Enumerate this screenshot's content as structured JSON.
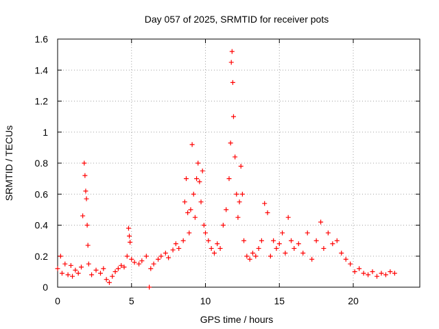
{
  "chart_data": {
    "type": "scatter",
    "title": "Day 057 of 2025, SRMTID for receiver pots",
    "xlabel": "GPS time / hours",
    "ylabel": "SRMTID / TECUs",
    "xlim": [
      0,
      24.5
    ],
    "ylim": [
      0,
      1.6
    ],
    "x_ticks": [
      0,
      5,
      10,
      15,
      20
    ],
    "x_tick_labels": [
      "0",
      "5",
      "10",
      "15",
      "20"
    ],
    "y_ticks": [
      0,
      0.2,
      0.4,
      0.6,
      0.8,
      1.0,
      1.2,
      1.4,
      1.6
    ],
    "y_tick_labels": [
      "0",
      "0.2",
      "0.4",
      "0.6",
      "0.8",
      "1",
      "1.2",
      "1.4",
      "1.6"
    ],
    "grid": true,
    "marker": "+",
    "marker_color": "#ff0000",
    "series": [
      {
        "name": "SRMTID",
        "points": [
          [
            0.0,
            0.12
          ],
          [
            0.2,
            0.2
          ],
          [
            0.3,
            0.09
          ],
          [
            0.5,
            0.15
          ],
          [
            0.7,
            0.08
          ],
          [
            0.9,
            0.14
          ],
          [
            1.0,
            0.07
          ],
          [
            1.2,
            0.11
          ],
          [
            1.4,
            0.09
          ],
          [
            1.6,
            0.13
          ],
          [
            1.7,
            0.46
          ],
          [
            1.8,
            0.8
          ],
          [
            1.85,
            0.72
          ],
          [
            1.9,
            0.62
          ],
          [
            1.95,
            0.57
          ],
          [
            2.0,
            0.4
          ],
          [
            2.05,
            0.27
          ],
          [
            2.1,
            0.15
          ],
          [
            2.3,
            0.08
          ],
          [
            2.6,
            0.11
          ],
          [
            2.9,
            0.09
          ],
          [
            3.1,
            0.12
          ],
          [
            3.3,
            0.05
          ],
          [
            3.5,
            0.03
          ],
          [
            3.7,
            0.07
          ],
          [
            3.9,
            0.1
          ],
          [
            4.1,
            0.12
          ],
          [
            4.3,
            0.14
          ],
          [
            4.5,
            0.13
          ],
          [
            4.7,
            0.2
          ],
          [
            4.8,
            0.38
          ],
          [
            4.85,
            0.33
          ],
          [
            4.9,
            0.29
          ],
          [
            5.0,
            0.18
          ],
          [
            5.2,
            0.16
          ],
          [
            5.5,
            0.15
          ],
          [
            5.7,
            0.17
          ],
          [
            6.0,
            0.2
          ],
          [
            6.2,
            0.0
          ],
          [
            6.3,
            0.12
          ],
          [
            6.5,
            0.15
          ],
          [
            6.8,
            0.18
          ],
          [
            7.0,
            0.2
          ],
          [
            7.3,
            0.22
          ],
          [
            7.5,
            0.19
          ],
          [
            7.8,
            0.24
          ],
          [
            8.0,
            0.28
          ],
          [
            8.2,
            0.25
          ],
          [
            8.5,
            0.3
          ],
          [
            8.6,
            0.55
          ],
          [
            8.7,
            0.7
          ],
          [
            8.8,
            0.48
          ],
          [
            8.9,
            0.35
          ],
          [
            9.0,
            0.5
          ],
          [
            9.1,
            0.92
          ],
          [
            9.2,
            0.6
          ],
          [
            9.3,
            0.45
          ],
          [
            9.4,
            0.7
          ],
          [
            9.5,
            0.8
          ],
          [
            9.6,
            0.68
          ],
          [
            9.7,
            0.55
          ],
          [
            9.8,
            0.75
          ],
          [
            9.9,
            0.4
          ],
          [
            10.0,
            0.35
          ],
          [
            10.2,
            0.3
          ],
          [
            10.4,
            0.25
          ],
          [
            10.6,
            0.22
          ],
          [
            10.8,
            0.28
          ],
          [
            11.0,
            0.25
          ],
          [
            11.2,
            0.4
          ],
          [
            11.4,
            0.5
          ],
          [
            11.6,
            0.7
          ],
          [
            11.7,
            0.93
          ],
          [
            11.75,
            1.45
          ],
          [
            11.8,
            1.52
          ],
          [
            11.85,
            1.32
          ],
          [
            11.9,
            1.1
          ],
          [
            12.0,
            0.84
          ],
          [
            12.1,
            0.6
          ],
          [
            12.2,
            0.45
          ],
          [
            12.3,
            0.55
          ],
          [
            12.4,
            0.78
          ],
          [
            12.5,
            0.6
          ],
          [
            12.6,
            0.3
          ],
          [
            12.8,
            0.2
          ],
          [
            13.0,
            0.18
          ],
          [
            13.2,
            0.22
          ],
          [
            13.4,
            0.2
          ],
          [
            13.6,
            0.25
          ],
          [
            13.8,
            0.3
          ],
          [
            14.0,
            0.54
          ],
          [
            14.2,
            0.48
          ],
          [
            14.4,
            0.2
          ],
          [
            14.6,
            0.3
          ],
          [
            14.8,
            0.25
          ],
          [
            15.0,
            0.28
          ],
          [
            15.2,
            0.35
          ],
          [
            15.4,
            0.22
          ],
          [
            15.6,
            0.45
          ],
          [
            15.8,
            0.3
          ],
          [
            16.0,
            0.25
          ],
          [
            16.3,
            0.28
          ],
          [
            16.6,
            0.22
          ],
          [
            16.9,
            0.35
          ],
          [
            17.2,
            0.18
          ],
          [
            17.5,
            0.3
          ],
          [
            17.8,
            0.42
          ],
          [
            18.0,
            0.25
          ],
          [
            18.3,
            0.35
          ],
          [
            18.6,
            0.28
          ],
          [
            18.9,
            0.3
          ],
          [
            19.2,
            0.22
          ],
          [
            19.5,
            0.18
          ],
          [
            19.8,
            0.15
          ],
          [
            20.1,
            0.1
          ],
          [
            20.4,
            0.12
          ],
          [
            20.7,
            0.09
          ],
          [
            21.0,
            0.08
          ],
          [
            21.3,
            0.1
          ],
          [
            21.6,
            0.07
          ],
          [
            21.9,
            0.09
          ],
          [
            22.2,
            0.08
          ],
          [
            22.5,
            0.1
          ],
          [
            22.8,
            0.09
          ]
        ]
      }
    ]
  }
}
